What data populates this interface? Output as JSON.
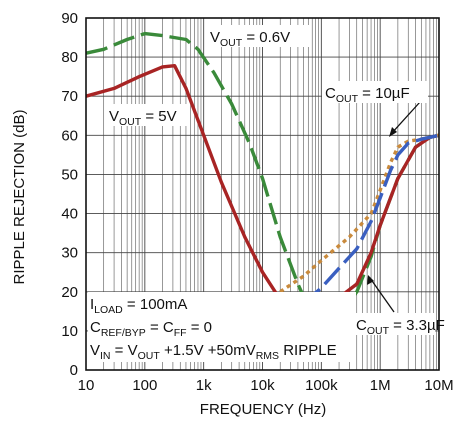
{
  "chart_data": {
    "type": "line",
    "xlabel": "FREQUENCY (Hz)",
    "ylabel": "RIPPLE REJECTION (dB)",
    "x_scale": "log",
    "xlim": [
      10,
      10000000
    ],
    "ylim": [
      0,
      90
    ],
    "grid": true,
    "x_ticks": [
      "10",
      "100",
      "1k",
      "10k",
      "100k",
      "1M",
      "10M"
    ],
    "y_ticks": [
      "0",
      "10",
      "20",
      "30",
      "40",
      "50",
      "60",
      "70",
      "80",
      "90"
    ],
    "series": [
      {
        "name": "VOUT = 0.6V",
        "color": "#3a8a3a",
        "dash": "long-dash",
        "points": [
          [
            10,
            81
          ],
          [
            20,
            82
          ],
          [
            50,
            84.5
          ],
          [
            100,
            86
          ],
          [
            200,
            85.5
          ],
          [
            500,
            84.5
          ],
          [
            800,
            82
          ],
          [
            1500,
            76
          ],
          [
            3000,
            68
          ],
          [
            6000,
            58
          ],
          [
            10000,
            49
          ],
          [
            20000,
            34
          ],
          [
            40000,
            22
          ],
          [
            70000,
            14
          ],
          [
            100000,
            13
          ],
          [
            200000,
            14
          ],
          [
            400000,
            20
          ],
          [
            700000,
            29
          ],
          [
            1000000,
            37
          ],
          [
            2000000,
            49
          ],
          [
            4000000,
            57
          ],
          [
            7000000,
            59.5
          ],
          [
            10000000,
            60
          ]
        ]
      },
      {
        "name": "VOUT = 5V",
        "color": "#a82424",
        "dash": "solid",
        "points": [
          [
            10,
            70
          ],
          [
            30,
            72
          ],
          [
            80,
            75
          ],
          [
            200,
            77.5
          ],
          [
            320,
            77.8
          ],
          [
            500,
            72
          ],
          [
            1000,
            60
          ],
          [
            2000,
            48
          ],
          [
            5000,
            34
          ],
          [
            10000,
            25
          ],
          [
            20000,
            18
          ],
          [
            40000,
            15
          ],
          [
            70000,
            15
          ],
          [
            100000,
            16
          ],
          [
            200000,
            18.5
          ],
          [
            400000,
            22
          ],
          [
            700000,
            30
          ],
          [
            1000000,
            37
          ],
          [
            2000000,
            49
          ],
          [
            4000000,
            57
          ],
          [
            7000000,
            59.5
          ],
          [
            10000000,
            60
          ]
        ]
      },
      {
        "name": "COUT = 10µF",
        "color": "#c98a3c",
        "dash": "dotted",
        "points": [
          [
            20000,
            20
          ],
          [
            50000,
            24
          ],
          [
            100000,
            28
          ],
          [
            300000,
            34
          ],
          [
            700000,
            40
          ],
          [
            1000000,
            46
          ],
          [
            1500000,
            53
          ],
          [
            2000000,
            57
          ],
          [
            3000000,
            58.5
          ],
          [
            5000000,
            59
          ],
          [
            10000000,
            60
          ]
        ]
      },
      {
        "name": "COUT = 3.3µF",
        "color": "#3a5fc0",
        "dash": "long-dash",
        "points": [
          [
            45000,
            18
          ],
          [
            70000,
            19
          ],
          [
            100000,
            21
          ],
          [
            200000,
            26
          ],
          [
            400000,
            31
          ],
          [
            700000,
            38
          ],
          [
            1000000,
            44
          ],
          [
            1500000,
            51
          ],
          [
            2000000,
            55
          ],
          [
            3000000,
            58
          ],
          [
            5000000,
            59
          ],
          [
            10000000,
            60
          ]
        ]
      }
    ],
    "annotations": {
      "vout_06_main": "V",
      "vout_06_sub": "OUT",
      "vout_06_rest": " = 0.6V",
      "vout_5_main": "V",
      "vout_5_sub": "OUT",
      "vout_5_rest": " = 5V",
      "cout_10_main": "C",
      "cout_10_sub": "OUT",
      "cout_10_rest": " = 10µF",
      "cout_33_main": "C",
      "cout_33_sub": "OUT",
      "cout_33_rest": " = 3.3µF",
      "iload_main": "I",
      "iload_sub": "LOAD",
      "iload_rest": " = 100mA",
      "cref_main": "C",
      "cref_sub": "REF/BYP",
      "cref_mid": " = C",
      "cref_sub2": "FF",
      "cref_rest": " = 0",
      "vin_main": "V",
      "vin_sub": "IN",
      "vin_mid": " = V",
      "vin_sub2": "OUT",
      "vin_mid2": " +1.5V +50mV",
      "vin_sub3": "RMS",
      "vin_rest": " RIPPLE"
    }
  }
}
